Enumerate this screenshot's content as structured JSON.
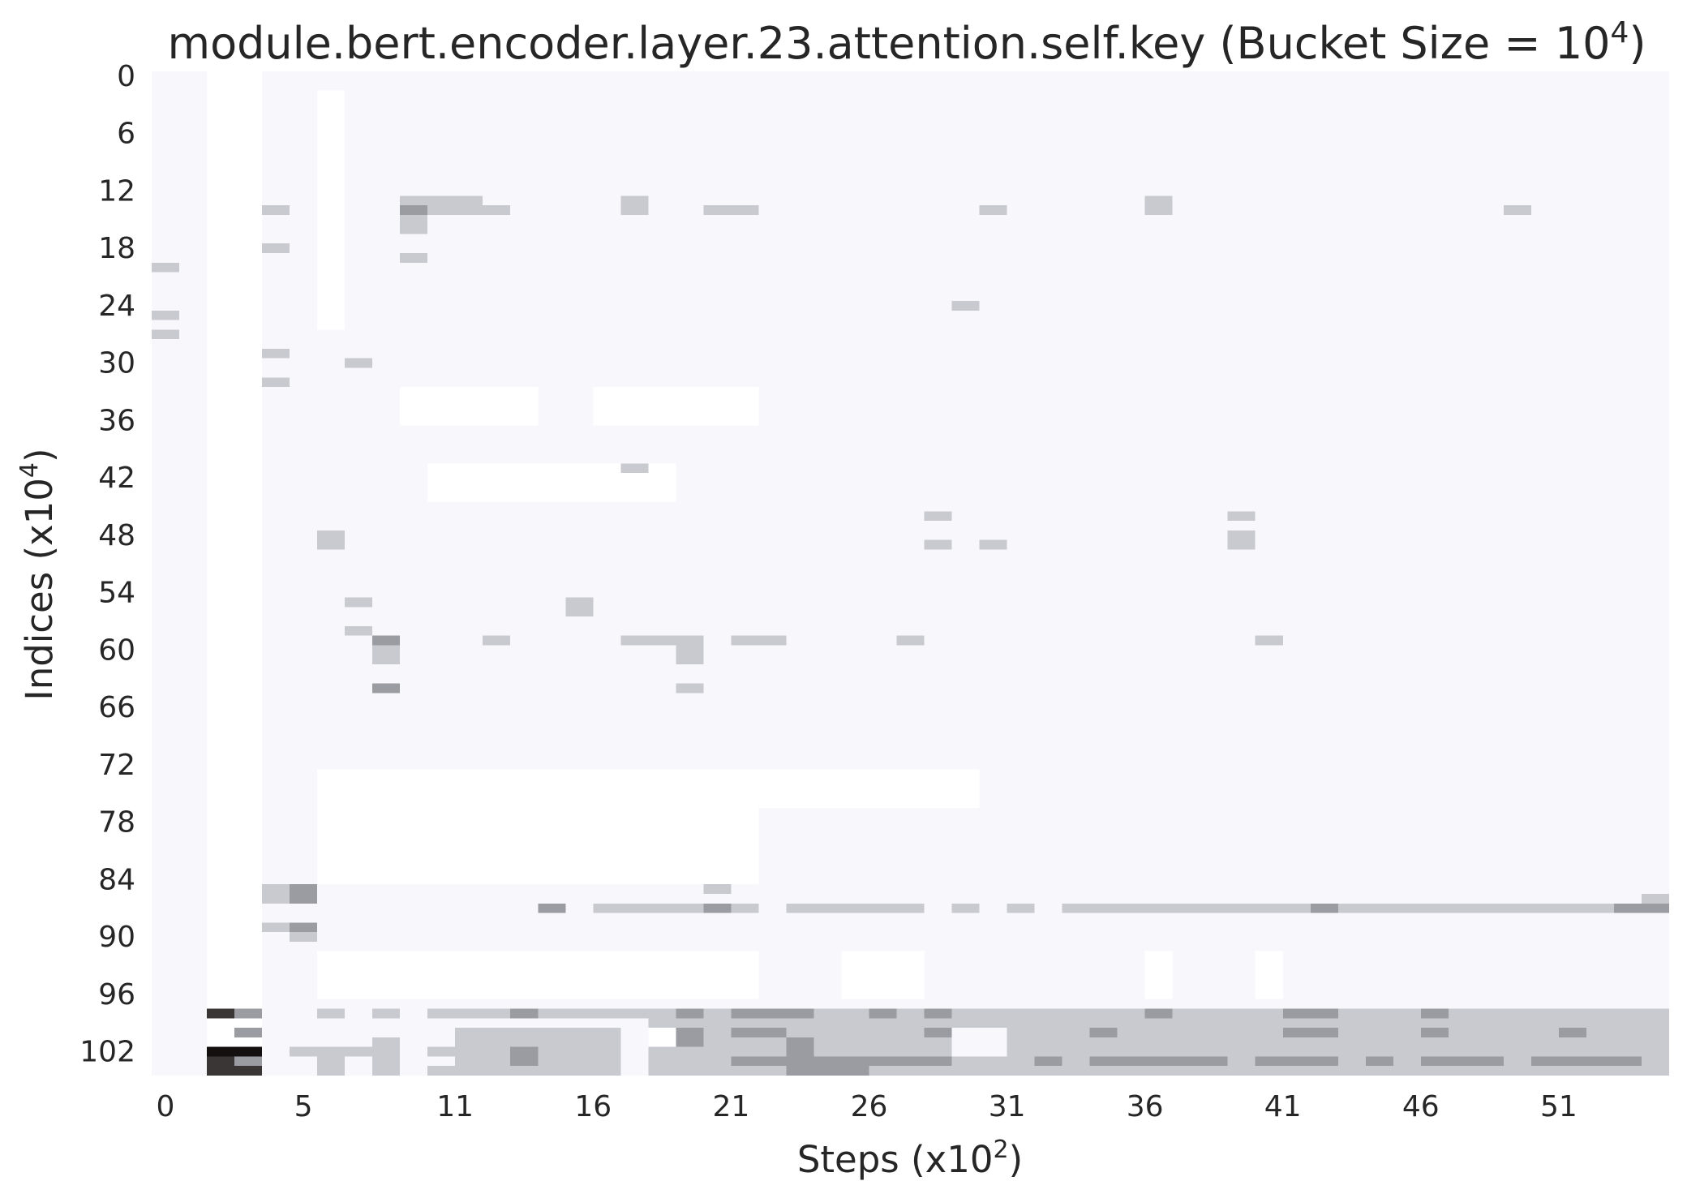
{
  "chart_data": {
    "type": "heatmap",
    "title": "module.bert.encoder.layer.23.attention.self.key (Bucket Size = 10",
    "title_sup": "4",
    "title_end": ")",
    "xlabel": "Steps (x10",
    "xlabel_sup": "2",
    "xlabel_end": ")",
    "ylabel": "Indices (x10",
    "ylabel_sup": "4",
    "ylabel_end": ")",
    "x_tick_labels": [
      "0",
      "5",
      "11",
      "16",
      "21",
      "26",
      "31",
      "36",
      "41",
      "46",
      "51"
    ],
    "x_tick_steps": [
      0,
      5,
      10.5,
      15.5,
      20.5,
      25.5,
      30.5,
      35.5,
      40.5,
      45.5,
      50.5
    ],
    "y_tick_labels": [
      "0",
      "6",
      "12",
      "18",
      "24",
      "30",
      "36",
      "42",
      "48",
      "54",
      "60",
      "66",
      "72",
      "78",
      "84",
      "90",
      "96",
      "102"
    ],
    "n_steps": 55,
    "n_indices": 105,
    "grid": false,
    "colors": {
      "background": "#f8f8fc",
      "white": "#ffffff",
      "light": "#c9c9d0",
      "medium": "#9b9ba2",
      "dark": "#3b3636",
      "black": "#141010"
    },
    "cells": [
      {
        "x": [
          0,
          1
        ],
        "y": [
          20,
          20
        ],
        "v": "light"
      },
      {
        "x": [
          0,
          1
        ],
        "y": [
          25,
          25
        ],
        "v": "light"
      },
      {
        "x": [
          0,
          1
        ],
        "y": [
          27,
          27
        ],
        "v": "light"
      },
      {
        "x": [
          2,
          4
        ],
        "y": [
          0,
          80
        ],
        "v": "white"
      },
      {
        "x": [
          2,
          3
        ],
        "y": [
          80,
          104
        ],
        "v": "white"
      },
      {
        "x": [
          6,
          7
        ],
        "y": [
          2,
          26
        ],
        "v": "white"
      },
      {
        "x": [
          4,
          5
        ],
        "y": [
          14,
          14
        ],
        "v": "light"
      },
      {
        "x": [
          4,
          5
        ],
        "y": [
          18,
          18
        ],
        "v": "light"
      },
      {
        "x": [
          4,
          5
        ],
        "y": [
          29,
          29
        ],
        "v": "light"
      },
      {
        "x": [
          4,
          5
        ],
        "y": [
          32,
          32
        ],
        "v": "light"
      },
      {
        "x": [
          7,
          8
        ],
        "y": [
          30,
          30
        ],
        "v": "light"
      },
      {
        "x": [
          9,
          12
        ],
        "y": [
          13,
          13
        ],
        "v": "light"
      },
      {
        "x": [
          9,
          13
        ],
        "y": [
          14,
          14
        ],
        "v": "light"
      },
      {
        "x": [
          9,
          10
        ],
        "y": [
          14,
          14
        ],
        "v": "medium"
      },
      {
        "x": [
          9,
          10
        ],
        "y": [
          15,
          16
        ],
        "v": "light"
      },
      {
        "x": [
          9,
          10
        ],
        "y": [
          19,
          19
        ],
        "v": "light"
      },
      {
        "x": [
          17,
          18
        ],
        "y": [
          13,
          14
        ],
        "v": "light"
      },
      {
        "x": [
          20,
          22
        ],
        "y": [
          14,
          14
        ],
        "v": "light"
      },
      {
        "x": [
          30,
          31
        ],
        "y": [
          14,
          14
        ],
        "v": "light"
      },
      {
        "x": [
          36,
          37
        ],
        "y": [
          13,
          14
        ],
        "v": "light"
      },
      {
        "x": [
          49,
          50
        ],
        "y": [
          14,
          14
        ],
        "v": "light"
      },
      {
        "x": [
          29,
          30
        ],
        "y": [
          24,
          24
        ],
        "v": "light"
      },
      {
        "x": [
          9,
          14
        ],
        "y": [
          33,
          36
        ],
        "v": "white"
      },
      {
        "x": [
          16,
          22
        ],
        "y": [
          33,
          36
        ],
        "v": "white"
      },
      {
        "x": [
          10,
          19
        ],
        "y": [
          41,
          44
        ],
        "v": "white"
      },
      {
        "x": [
          17,
          18
        ],
        "y": [
          41,
          41
        ],
        "v": "light"
      },
      {
        "x": [
          28,
          29
        ],
        "y": [
          46,
          46
        ],
        "v": "light"
      },
      {
        "x": [
          28,
          29
        ],
        "y": [
          49,
          49
        ],
        "v": "light"
      },
      {
        "x": [
          30,
          31
        ],
        "y": [
          49,
          49
        ],
        "v": "light"
      },
      {
        "x": [
          6,
          7
        ],
        "y": [
          48,
          49
        ],
        "v": "light"
      },
      {
        "x": [
          39,
          40
        ],
        "y": [
          46,
          46
        ],
        "v": "light"
      },
      {
        "x": [
          39,
          40
        ],
        "y": [
          48,
          49
        ],
        "v": "light"
      },
      {
        "x": [
          2,
          4
        ],
        "y": [
          52,
          60
        ],
        "v": "white"
      },
      {
        "x": [
          7,
          8
        ],
        "y": [
          55,
          55
        ],
        "v": "light"
      },
      {
        "x": [
          15,
          16
        ],
        "y": [
          55,
          56
        ],
        "v": "light"
      },
      {
        "x": [
          7,
          8
        ],
        "y": [
          58,
          58
        ],
        "v": "light"
      },
      {
        "x": [
          8,
          9
        ],
        "y": [
          59,
          59
        ],
        "v": "medium"
      },
      {
        "x": [
          8,
          9
        ],
        "y": [
          60,
          61
        ],
        "v": "light"
      },
      {
        "x": [
          8,
          9
        ],
        "y": [
          64,
          64
        ],
        "v": "medium"
      },
      {
        "x": [
          12,
          13
        ],
        "y": [
          59,
          59
        ],
        "v": "light"
      },
      {
        "x": [
          17,
          20
        ],
        "y": [
          59,
          59
        ],
        "v": "light"
      },
      {
        "x": [
          19,
          20
        ],
        "y": [
          60,
          61
        ],
        "v": "light"
      },
      {
        "x": [
          19,
          20
        ],
        "y": [
          64,
          64
        ],
        "v": "light"
      },
      {
        "x": [
          21,
          23
        ],
        "y": [
          59,
          59
        ],
        "v": "light"
      },
      {
        "x": [
          27,
          28
        ],
        "y": [
          59,
          59
        ],
        "v": "light"
      },
      {
        "x": [
          40,
          41
        ],
        "y": [
          59,
          59
        ],
        "v": "light"
      },
      {
        "x": [
          2,
          4
        ],
        "y": [
          66,
          104
        ],
        "v": "white"
      },
      {
        "x": [
          6,
          22
        ],
        "y": [
          73,
          84
        ],
        "v": "white"
      },
      {
        "x": [
          22,
          30
        ],
        "y": [
          73,
          76
        ],
        "v": "white"
      },
      {
        "x": [
          4,
          5
        ],
        "y": [
          85,
          86
        ],
        "v": "light"
      },
      {
        "x": [
          5,
          6
        ],
        "y": [
          85,
          86
        ],
        "v": "medium"
      },
      {
        "x": [
          4,
          5
        ],
        "y": [
          89,
          89
        ],
        "v": "light"
      },
      {
        "x": [
          5,
          6
        ],
        "y": [
          89,
          89
        ],
        "v": "medium"
      },
      {
        "x": [
          5,
          6
        ],
        "y": [
          90,
          90
        ],
        "v": "light"
      },
      {
        "x": [
          20,
          21
        ],
        "y": [
          85,
          85
        ],
        "v": "light"
      },
      {
        "x": [
          14,
          15
        ],
        "y": [
          87,
          87
        ],
        "v": "medium"
      },
      {
        "x": [
          16,
          20
        ],
        "y": [
          87,
          87
        ],
        "v": "light"
      },
      {
        "x": [
          20,
          21
        ],
        "y": [
          87,
          87
        ],
        "v": "medium"
      },
      {
        "x": [
          21,
          22
        ],
        "y": [
          87,
          87
        ],
        "v": "light"
      },
      {
        "x": [
          23,
          28
        ],
        "y": [
          87,
          87
        ],
        "v": "light"
      },
      {
        "x": [
          29,
          30
        ],
        "y": [
          87,
          87
        ],
        "v": "light"
      },
      {
        "x": [
          31,
          32
        ],
        "y": [
          87,
          87
        ],
        "v": "light"
      },
      {
        "x": [
          33,
          42
        ],
        "y": [
          87,
          87
        ],
        "v": "light"
      },
      {
        "x": [
          42,
          43
        ],
        "y": [
          87,
          87
        ],
        "v": "medium"
      },
      {
        "x": [
          43,
          53
        ],
        "y": [
          87,
          87
        ],
        "v": "light"
      },
      {
        "x": [
          53,
          55
        ],
        "y": [
          87,
          87
        ],
        "v": "medium"
      },
      {
        "x": [
          54,
          55
        ],
        "y": [
          86,
          86
        ],
        "v": "light"
      },
      {
        "x": [
          6,
          22
        ],
        "y": [
          92,
          96
        ],
        "v": "white"
      },
      {
        "x": [
          25,
          28
        ],
        "y": [
          92,
          96
        ],
        "v": "white"
      },
      {
        "x": [
          36,
          37
        ],
        "y": [
          92,
          96
        ],
        "v": "white"
      },
      {
        "x": [
          40,
          41
        ],
        "y": [
          92,
          96
        ],
        "v": "white"
      },
      {
        "x": [
          2,
          3
        ],
        "y": [
          98,
          98
        ],
        "v": "dark"
      },
      {
        "x": [
          3,
          4
        ],
        "y": [
          98,
          98
        ],
        "v": "medium"
      },
      {
        "x": [
          3,
          4
        ],
        "y": [
          100,
          100
        ],
        "v": "medium"
      },
      {
        "x": [
          2,
          3
        ],
        "y": [
          100,
          100
        ],
        "v": "white"
      },
      {
        "x": [
          2,
          4
        ],
        "y": [
          102,
          102
        ],
        "v": "black"
      },
      {
        "x": [
          2,
          4
        ],
        "y": [
          103,
          104
        ],
        "v": "dark"
      },
      {
        "x": [
          3,
          4
        ],
        "y": [
          103,
          103
        ],
        "v": "medium"
      },
      {
        "x": [
          6,
          7
        ],
        "y": [
          98,
          98
        ],
        "v": "light"
      },
      {
        "x": [
          8,
          9
        ],
        "y": [
          98,
          98
        ],
        "v": "light"
      },
      {
        "x": [
          10,
          55
        ],
        "y": [
          98,
          98
        ],
        "v": "light"
      },
      {
        "x": [
          5,
          8
        ],
        "y": [
          102,
          102
        ],
        "v": "light"
      },
      {
        "x": [
          6,
          7
        ],
        "y": [
          103,
          104
        ],
        "v": "light"
      },
      {
        "x": [
          8,
          9
        ],
        "y": [
          101,
          104
        ],
        "v": "light"
      },
      {
        "x": [
          10,
          11
        ],
        "y": [
          102,
          102
        ],
        "v": "light"
      },
      {
        "x": [
          10,
          11
        ],
        "y": [
          104,
          104
        ],
        "v": "light"
      },
      {
        "x": [
          11,
          17
        ],
        "y": [
          100,
          104
        ],
        "v": "light"
      },
      {
        "x": [
          18,
          29
        ],
        "y": [
          98,
          104
        ],
        "v": "light"
      },
      {
        "x": [
          31,
          55
        ],
        "y": [
          98,
          104
        ],
        "v": "light"
      },
      {
        "x": [
          29,
          31
        ],
        "y": [
          98,
          99
        ],
        "v": "light"
      },
      {
        "x": [
          29,
          31
        ],
        "y": [
          103,
          104
        ],
        "v": "light"
      },
      {
        "x": [
          18,
          19
        ],
        "y": [
          100,
          101
        ],
        "v": "white"
      },
      {
        "x": [
          13,
          14
        ],
        "y": [
          98,
          98
        ],
        "v": "medium"
      },
      {
        "x": [
          13,
          14
        ],
        "y": [
          102,
          103
        ],
        "v": "medium"
      },
      {
        "x": [
          19,
          20
        ],
        "y": [
          98,
          98
        ],
        "v": "medium"
      },
      {
        "x": [
          19,
          20
        ],
        "y": [
          100,
          101
        ],
        "v": "medium"
      },
      {
        "x": [
          21,
          24
        ],
        "y": [
          98,
          98
        ],
        "v": "medium"
      },
      {
        "x": [
          21,
          23
        ],
        "y": [
          100,
          100
        ],
        "v": "medium"
      },
      {
        "x": [
          21,
          24
        ],
        "y": [
          103,
          103
        ],
        "v": "medium"
      },
      {
        "x": [
          23,
          24
        ],
        "y": [
          101,
          104
        ],
        "v": "medium"
      },
      {
        "x": [
          24,
          26
        ],
        "y": [
          103,
          104
        ],
        "v": "medium"
      },
      {
        "x": [
          26,
          27
        ],
        "y": [
          98,
          98
        ],
        "v": "medium"
      },
      {
        "x": [
          26,
          29
        ],
        "y": [
          103,
          103
        ],
        "v": "medium"
      },
      {
        "x": [
          28,
          29
        ],
        "y": [
          98,
          98
        ],
        "v": "medium"
      },
      {
        "x": [
          28,
          29
        ],
        "y": [
          100,
          100
        ],
        "v": "medium"
      },
      {
        "x": [
          32,
          33
        ],
        "y": [
          103,
          103
        ],
        "v": "medium"
      },
      {
        "x": [
          34,
          35
        ],
        "y": [
          100,
          100
        ],
        "v": "medium"
      },
      {
        "x": [
          34,
          39
        ],
        "y": [
          103,
          103
        ],
        "v": "medium"
      },
      {
        "x": [
          36,
          37
        ],
        "y": [
          98,
          98
        ],
        "v": "medium"
      },
      {
        "x": [
          41,
          43
        ],
        "y": [
          98,
          98
        ],
        "v": "medium"
      },
      {
        "x": [
          41,
          43
        ],
        "y": [
          100,
          100
        ],
        "v": "medium"
      },
      {
        "x": [
          40,
          43
        ],
        "y": [
          103,
          103
        ],
        "v": "medium"
      },
      {
        "x": [
          44,
          45
        ],
        "y": [
          103,
          103
        ],
        "v": "medium"
      },
      {
        "x": [
          46,
          47
        ],
        "y": [
          98,
          98
        ],
        "v": "medium"
      },
      {
        "x": [
          46,
          47
        ],
        "y": [
          100,
          100
        ],
        "v": "medium"
      },
      {
        "x": [
          46,
          49
        ],
        "y": [
          103,
          103
        ],
        "v": "medium"
      },
      {
        "x": [
          50,
          54
        ],
        "y": [
          103,
          103
        ],
        "v": "medium"
      },
      {
        "x": [
          51,
          52
        ],
        "y": [
          100,
          100
        ],
        "v": "medium"
      }
    ]
  }
}
